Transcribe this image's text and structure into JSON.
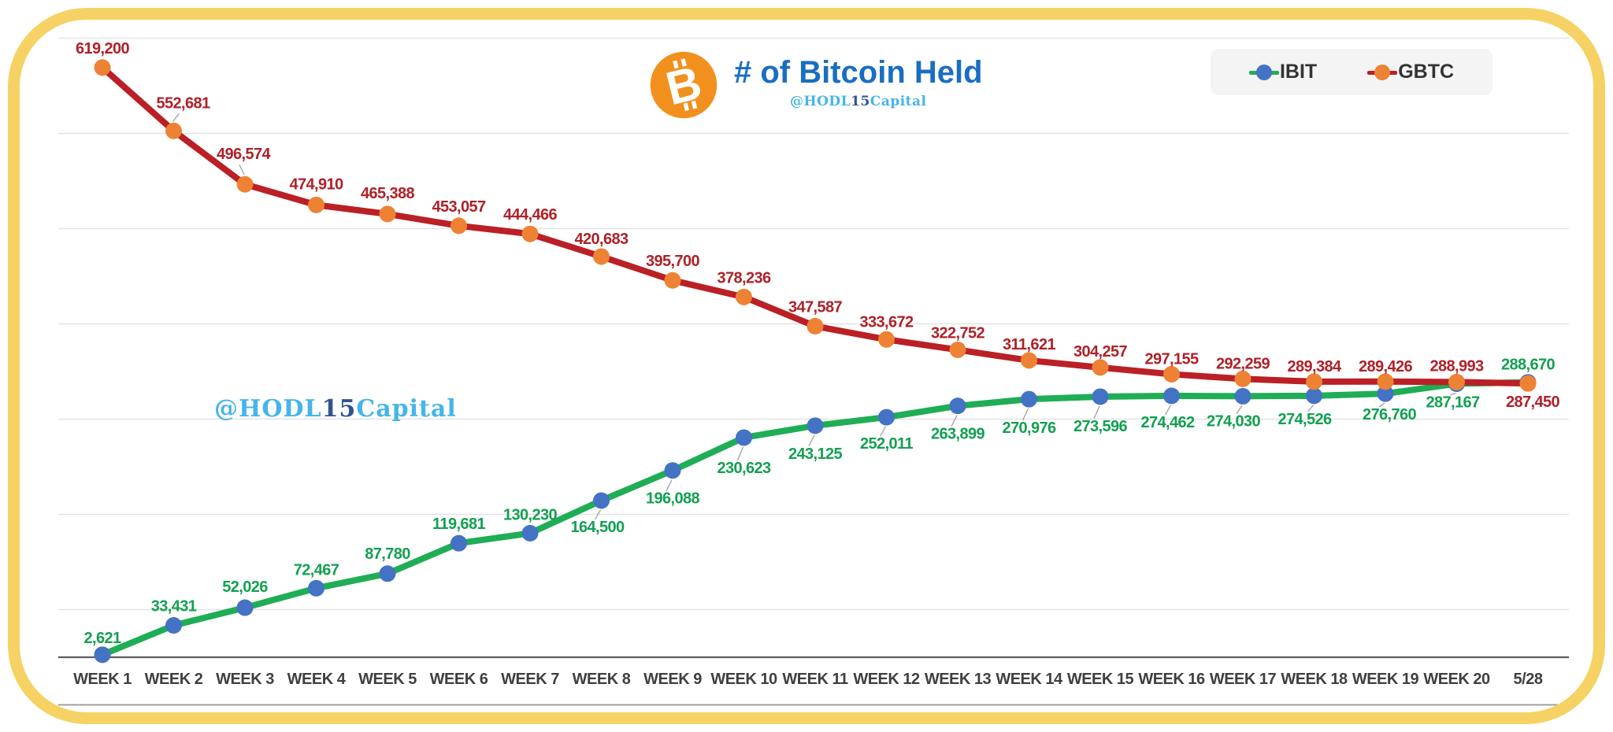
{
  "title": "# of Bitcoin Held",
  "credit": {
    "prefix": "@HODL",
    "number": "15",
    "suffix": "Capital"
  },
  "watermark": {
    "prefix": "@HODL",
    "number": "15",
    "suffix": "Capital"
  },
  "legend": {
    "items": [
      {
        "label": "IBIT"
      },
      {
        "label": "GBTC"
      }
    ]
  },
  "colors": {
    "title": "#1A6EC1",
    "frame": "#F5D263",
    "axis_label": "#3F3F3F",
    "grid": "#E3E3E3",
    "grid_zero": "#5F5F5F",
    "grid_bottom": "#979797",
    "leader": "#A6A6A6",
    "btc_orange": "#F2901E",
    "ibit_line": "#1FAD55",
    "ibit_marker": "#4472C4",
    "ibit_label": "#12A051",
    "gbtc_line": "#BA2025",
    "gbtc_marker": "#EE8234",
    "gbtc_label": "#AF2128",
    "watermark_light": "#45B5E8",
    "watermark_dark": "#2F5496",
    "legend_text": "#333333"
  },
  "chart_data": {
    "type": "line",
    "title": "# of Bitcoin Held",
    "categories": [
      "WEEK 1",
      "WEEK 2",
      "WEEK 3",
      "WEEK 4",
      "WEEK 5",
      "WEEK 6",
      "WEEK 7",
      "WEEK 8",
      "WEEK 9",
      "WEEK 10",
      "WEEK 11",
      "WEEK 12",
      "WEEK 13",
      "WEEK 14",
      "WEEK 15",
      "WEEK 16",
      "WEEK 17",
      "WEEK 18",
      "WEEK 19",
      "WEEK 20",
      "5/28"
    ],
    "series": [
      {
        "name": "IBIT",
        "values": [
          2621,
          33431,
          52026,
          72467,
          87780,
          119681,
          130230,
          164500,
          196088,
          230623,
          243125,
          252011,
          263899,
          270976,
          273596,
          274462,
          274030,
          274526,
          276760,
          287167,
          288670
        ]
      },
      {
        "name": "GBTC",
        "values": [
          619200,
          552681,
          496574,
          474910,
          465388,
          453057,
          444466,
          420683,
          395700,
          378236,
          347587,
          333672,
          322752,
          311621,
          304257,
          297155,
          292259,
          289384,
          289426,
          288993,
          287450
        ]
      }
    ],
    "ylim": [
      -50000,
      650000
    ],
    "gridline_step": 100000,
    "grid": true,
    "legend_position": "top-right",
    "data_labels": true
  }
}
